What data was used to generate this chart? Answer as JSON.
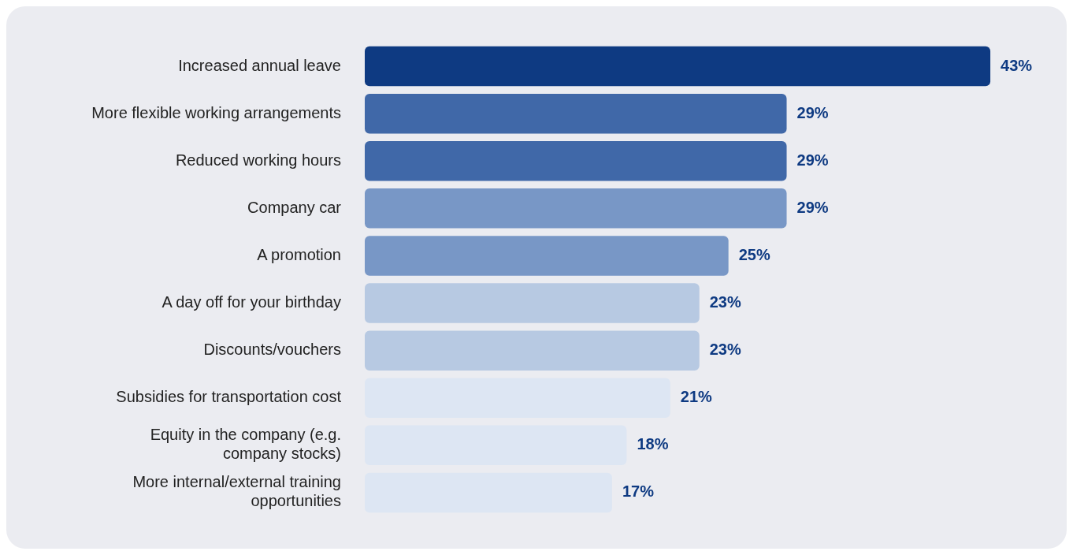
{
  "chart_data": {
    "type": "bar",
    "orientation": "horizontal",
    "categories": [
      "Increased annual leave",
      "More flexible working arrangements",
      "Reduced working hours",
      "Company car",
      "A promotion",
      "A day off for your birthday",
      "Discounts/vouchers",
      "Subsidies for transportation cost",
      "Equity in the company (e.g. company stocks)",
      "More internal/external training opportunities"
    ],
    "values": [
      43,
      29,
      29,
      29,
      25,
      23,
      23,
      21,
      18,
      17
    ],
    "colors": [
      "#0e3a82",
      "#4068a8",
      "#4068a8",
      "#7897c6",
      "#7897c6",
      "#b7c9e2",
      "#b7c9e2",
      "#dde6f3",
      "#dde6f3",
      "#dde6f3"
    ],
    "value_labels": [
      "43%",
      "29%",
      "29%",
      "29%",
      "25%",
      "23%",
      "23%",
      "21%",
      "18%",
      "17%"
    ],
    "grid": false,
    "legend": false
  }
}
